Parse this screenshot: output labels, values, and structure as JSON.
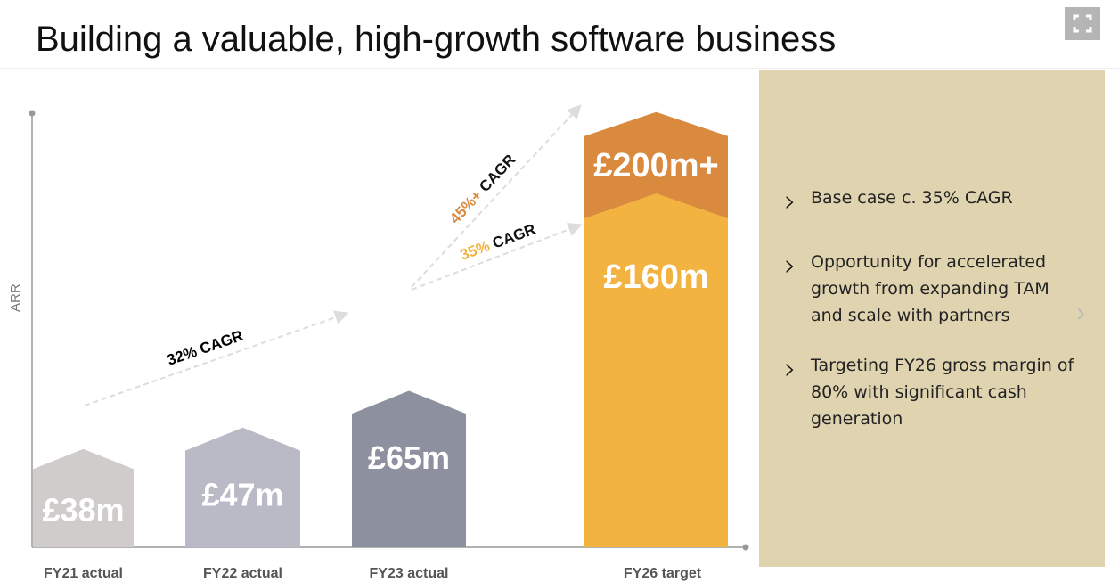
{
  "title": "Building a valuable, high-growth software business",
  "panel": {
    "bullets": [
      "Base case c. 35% CAGR",
      "Opportunity for accelerated growth from expanding TAM and scale with partners",
      "Targeting FY26 gross margin of 80% with significant cash generation"
    ]
  },
  "chart_data": {
    "type": "bar",
    "ylabel": "ARR",
    "categories": [
      "FY21 actual",
      "FY22 actual",
      "FY23 actual",
      "FY26 target"
    ],
    "values": [
      38,
      47,
      65,
      160
    ],
    "labels": [
      "£38m",
      "£47m",
      "£65m",
      "£160m"
    ],
    "upside": {
      "value": 200,
      "label": "£200m+"
    },
    "colors": [
      "#d0cccb",
      "#b9bac6",
      "#8d919f",
      "#f3b341"
    ],
    "upside_color": "#d98a3f",
    "annotations": [
      {
        "text": "32% CAGR",
        "color": "#111"
      },
      {
        "text": "35% CAGR",
        "pct_color": "#f3b341",
        "color": "#111"
      },
      {
        "text": "45%+ CAGR",
        "pct_color": "#d98a3f",
        "color": "#111"
      }
    ]
  }
}
